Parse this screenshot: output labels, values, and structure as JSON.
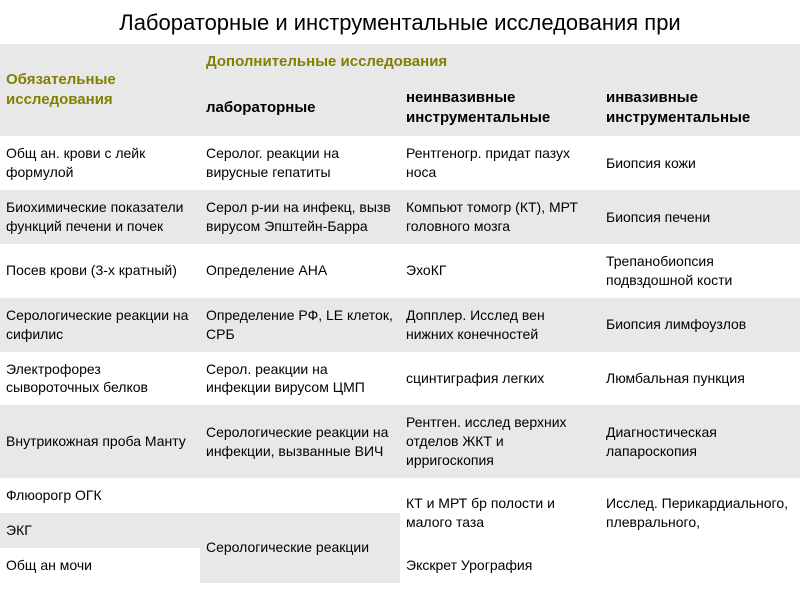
{
  "title": "Лабораторные и инструментальные исследования при",
  "colors": {
    "header_bg": "#e8e8e8",
    "header_text_olive": "#808000",
    "row_even_bg": "#ffffff",
    "row_odd_bg": "#e8e8e8",
    "text": "#000000"
  },
  "typography": {
    "title_fontsize": 22,
    "header_fontsize": 15,
    "cell_fontsize": 14,
    "font_family": "Arial"
  },
  "table": {
    "type": "table",
    "column_widths_pct": [
      25,
      25,
      25,
      25
    ],
    "header": {
      "main_left": "Обязательные исследования",
      "main_right": "Дополнительные исследования",
      "sub": [
        "лабораторные",
        "неинвазивные инструментальные",
        "инвазивные инструментальные"
      ]
    },
    "rows": [
      [
        "Общ ан. крови с лейк формулой",
        "Серолог. реакции на вирусные гепатиты",
        "Рентгеногр. придат пазух носа",
        "Биопсия кожи"
      ],
      [
        "Биохимические показатели функций печени и почек",
        "Серол р-ии на инфекц, вызв вирусом Эпштейн-Барра",
        "Компьют томогр (КТ), МРТ головного мозга",
        "Биопсия печени"
      ],
      [
        "Посев крови (3-х кратный)",
        "Определение  АНА",
        "ЭхоКГ",
        "Трепанобиопсия подвздошной кости"
      ],
      [
        "Серологические реакции на сифилис",
        "Определение РФ, LE клеток, СРБ",
        "Допплер. Исслед вен нижних конечностей",
        "Биопсия лимфоузлов"
      ],
      [
        "Электрофорез сывороточных белков",
        "Серол. реакции на инфекции вирусом ЦМП",
        " сцинтиграфия легких",
        "Люмбальная пункция"
      ],
      [
        "Внутрикожная проба Манту",
        "Серологические реакции на инфекции, вызванные ВИЧ",
        "Рентген. исслед верхних отделов ЖКТ и ирригоскопия",
        "Диагностическая лапароскопия"
      ],
      [
        "Флюорогр ОГК",
        "",
        "КТ и МРТ бр полости и малого таза",
        "Исслед. Перикардиального, плеврального,"
      ],
      [
        "ЭКГ",
        "Серологические реакции",
        "",
        ""
      ],
      [
        "Общ ан мочи",
        "",
        "Экскрет  Урография",
        ""
      ]
    ]
  }
}
